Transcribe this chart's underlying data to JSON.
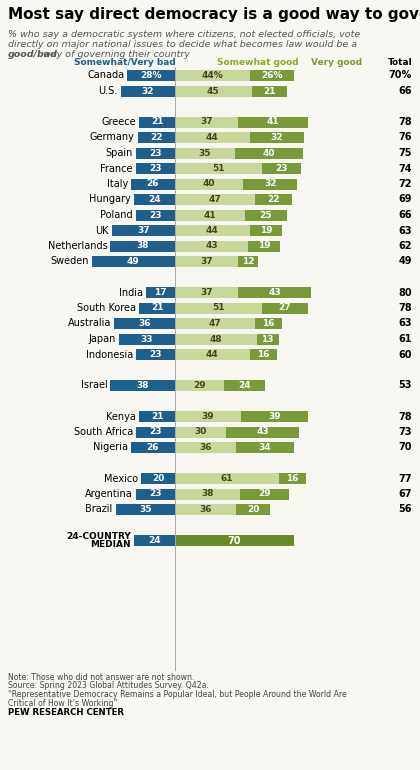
{
  "title": "Most say direct democracy is a good way to govern",
  "subtitle_line1": "% who say a democratic system where citizens, not elected officials, vote",
  "subtitle_line2": "directly on major national issues to decide what becomes law would be a",
  "subtitle_line3_pre": " way of governing their country",
  "subtitle_line3_bold": "good/bad",
  "col_labels": [
    "Somewhat/Very bad",
    "Somewhat good",
    "Very good",
    "Total"
  ],
  "countries": [
    "Canada",
    "U.S.",
    null,
    "Greece",
    "Germany",
    "Spain",
    "France",
    "Italy",
    "Hungary",
    "Poland",
    "UK",
    "Netherlands",
    "Sweden",
    null,
    "India",
    "South Korea",
    "Australia",
    "Japan",
    "Indonesia",
    null,
    "Israel",
    null,
    "Kenya",
    "South Africa",
    "Nigeria",
    null,
    "Mexico",
    "Argentina",
    "Brazil",
    null,
    "24-COUNTRY\nMEDIAN"
  ],
  "bad": [
    28,
    32,
    null,
    21,
    22,
    23,
    23,
    26,
    24,
    23,
    37,
    38,
    49,
    null,
    17,
    21,
    36,
    33,
    23,
    null,
    38,
    null,
    21,
    23,
    26,
    null,
    20,
    23,
    35,
    null,
    24
  ],
  "somewhat_good": [
    44,
    45,
    null,
    37,
    44,
    35,
    51,
    40,
    47,
    41,
    44,
    43,
    37,
    null,
    37,
    51,
    47,
    48,
    44,
    null,
    29,
    null,
    39,
    30,
    36,
    null,
    61,
    38,
    36,
    null,
    70
  ],
  "very_good": [
    26,
    21,
    null,
    41,
    32,
    40,
    23,
    32,
    22,
    25,
    19,
    19,
    12,
    null,
    43,
    27,
    16,
    13,
    16,
    null,
    24,
    null,
    39,
    43,
    34,
    null,
    16,
    29,
    20,
    null,
    null
  ],
  "totals": [
    "70%",
    "66",
    null,
    "78",
    "76",
    "75",
    "74",
    "72",
    "69",
    "66",
    "63",
    "62",
    "49",
    null,
    "80",
    "78",
    "63",
    "61",
    "60",
    null,
    "53",
    null,
    "78",
    "73",
    "70",
    null,
    "77",
    "67",
    "56",
    null,
    null
  ],
  "color_bad": "#1e5f8e",
  "color_somewhat_good": "#c8d89a",
  "color_very_good": "#7a9a3a",
  "color_median_combined": "#6b8a2a",
  "bg_color": "#f9f7f2",
  "note_lines": [
    "Note: Those who did not answer are not shown.",
    "Source: Spring 2023 Global Attitudes Survey. Q42a.",
    "“Representative Democracy Remains a Popular Ideal, but People Around the World Are",
    "Critical of How It’s Working”"
  ],
  "footer": "PEW RESEARCH CENTER"
}
